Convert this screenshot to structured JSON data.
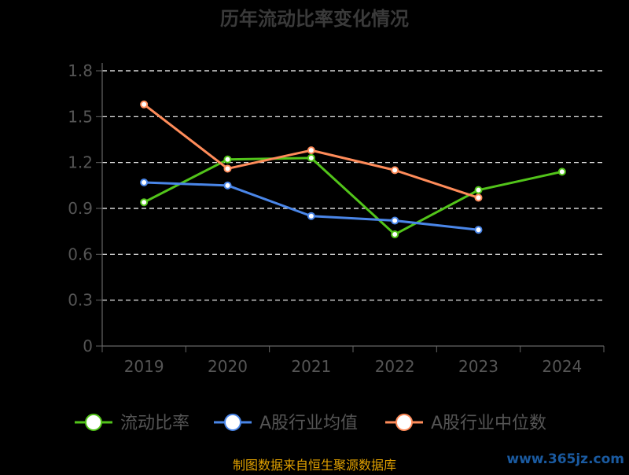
{
  "chart_data": {
    "type": "line",
    "title": "历年流动比率变化情况",
    "categories": [
      "2019",
      "2020",
      "2021",
      "2022",
      "2023",
      "2024"
    ],
    "ylim": [
      0,
      1.8
    ],
    "yticks": [
      "0",
      "0.3",
      "0.6",
      "0.9",
      "1.2",
      "1.5",
      "1.8"
    ],
    "grid": true,
    "legend_position": "bottom",
    "series": [
      {
        "name": "流动比率",
        "color": "#52c41a",
        "values": [
          0.94,
          1.22,
          1.23,
          0.73,
          1.02,
          1.14
        ]
      },
      {
        "name": "A股行业均值",
        "color": "#4a86e8",
        "values": [
          1.07,
          1.05,
          0.85,
          0.82,
          0.76,
          null
        ]
      },
      {
        "name": "A股行业中位数",
        "color": "#ff8c5a",
        "values": [
          1.58,
          1.16,
          1.28,
          1.15,
          0.97,
          null
        ]
      }
    ]
  },
  "footer": {
    "source": "制图数据来自恒生聚源数据库",
    "watermark": "www.365jz.com"
  }
}
